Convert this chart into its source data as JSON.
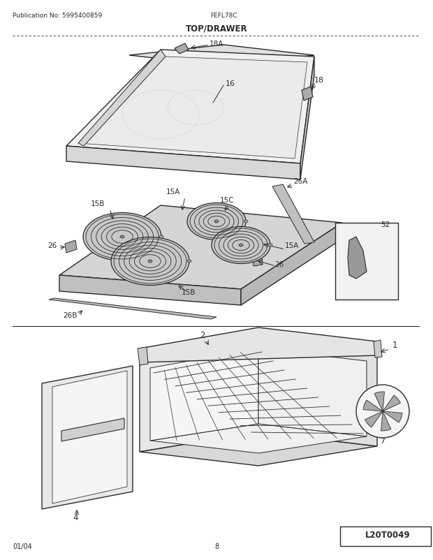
{
  "title": "TOP/DRAWER",
  "pub_no": "Publication No: 5995400859",
  "model": "FEFL78C",
  "date": "01/04",
  "page": "8",
  "logo": "L20T0049",
  "bg_color": "#ffffff",
  "line_color": "#2a2a2a",
  "gray_light": "#e8e8e8",
  "gray_mid": "#cccccc",
  "gray_dark": "#999999"
}
